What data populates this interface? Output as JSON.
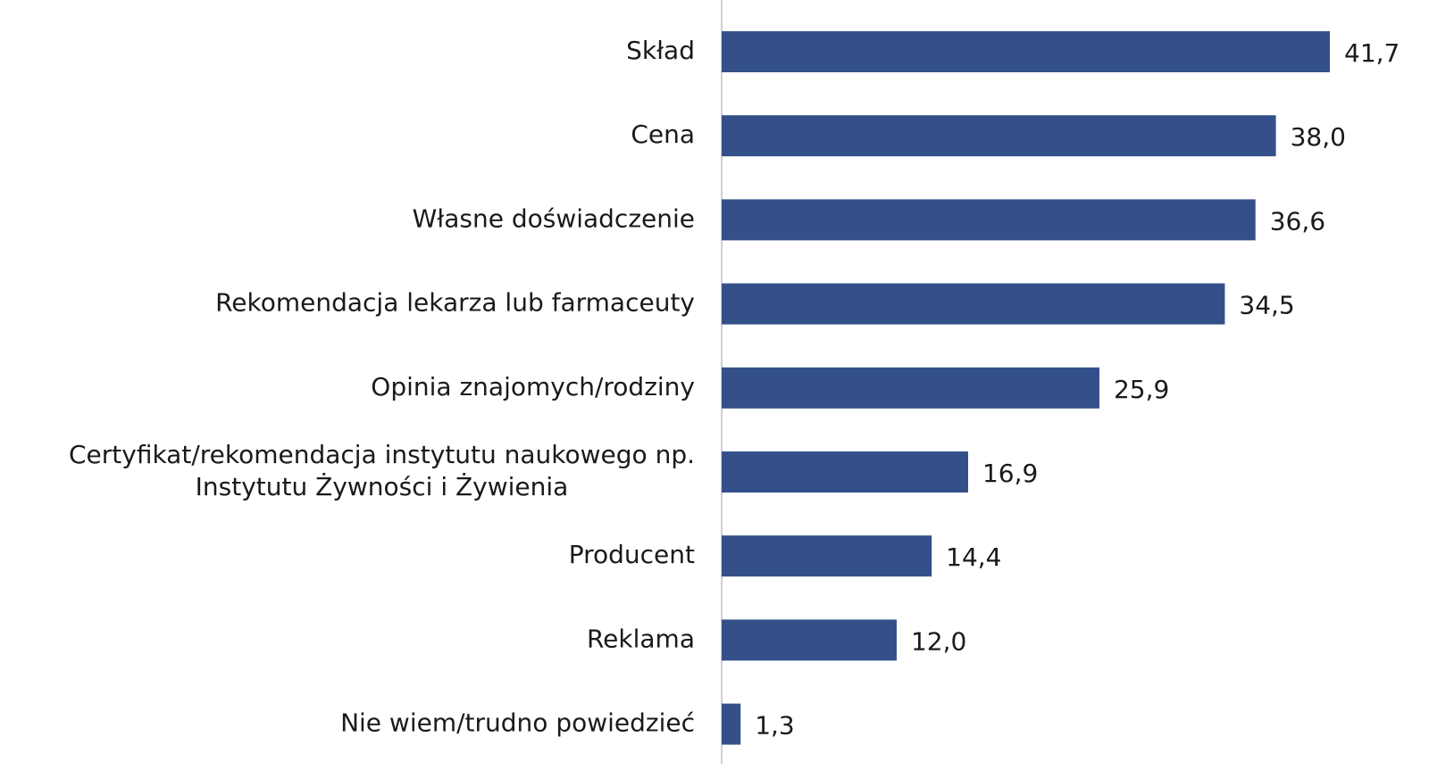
{
  "chart_data": {
    "type": "bar",
    "orientation": "horizontal",
    "categories": [
      "Skład",
      "Cena",
      "Własne doświadczenie",
      "Rekomendacja lekarza lub farmaceuty",
      "Opinia znajomych/rodziny",
      "Certyfikat/rekomendacja instytutu naukowego np. Instytutu Żywności i Żywienia",
      "Producent",
      "Reklama",
      "Nie wiem/trudno powiedzieć"
    ],
    "values": [
      41.7,
      38.0,
      36.6,
      34.5,
      25.9,
      16.9,
      14.4,
      12.0,
      1.3
    ],
    "value_labels": [
      "41,7",
      "38,0",
      "36,6",
      "34,5",
      "25,9",
      "16,9",
      "14,4",
      "12,0",
      "1,3"
    ],
    "color": "#34508a"
  }
}
